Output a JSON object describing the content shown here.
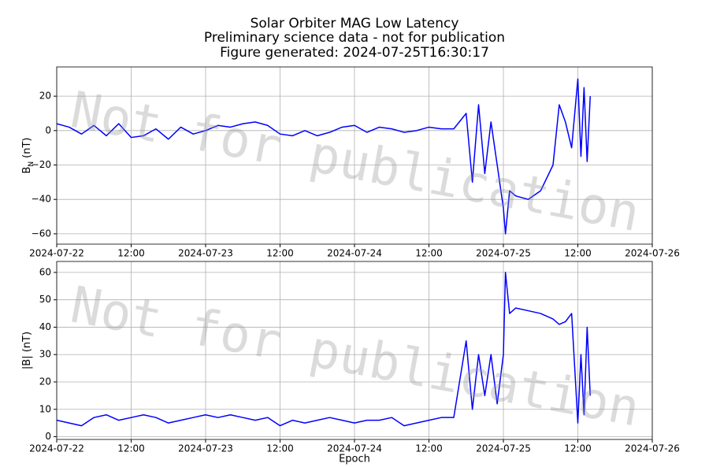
{
  "chart_data": [
    {
      "type": "line",
      "title": "Solar Orbiter MAG Low Latency",
      "subtitle": [
        "Preliminary science data - not for publication",
        "Figure generated: 2024-07-25T16:30:17"
      ],
      "ylabel": [
        "B",
        "N",
        "(nT)"
      ],
      "annotation": "Not for publication",
      "grid": true,
      "x": [
        "2024-07-22 00:00",
        "2024-07-22 02:00",
        "2024-07-22 04:00",
        "2024-07-22 06:00",
        "2024-07-22 08:00",
        "2024-07-22 10:00",
        "2024-07-22 12:00",
        "2024-07-22 14:00",
        "2024-07-22 16:00",
        "2024-07-22 18:00",
        "2024-07-22 20:00",
        "2024-07-22 22:00",
        "2024-07-23 00:00",
        "2024-07-23 02:00",
        "2024-07-23 04:00",
        "2024-07-23 06:00",
        "2024-07-23 08:00",
        "2024-07-23 10:00",
        "2024-07-23 12:00",
        "2024-07-23 14:00",
        "2024-07-23 16:00",
        "2024-07-23 18:00",
        "2024-07-23 20:00",
        "2024-07-23 22:00",
        "2024-07-24 00:00",
        "2024-07-24 02:00",
        "2024-07-24 04:00",
        "2024-07-24 06:00",
        "2024-07-24 08:00",
        "2024-07-24 10:00",
        "2024-07-24 12:00",
        "2024-07-24 14:00",
        "2024-07-24 16:00",
        "2024-07-24 18:00",
        "2024-07-24 19:00",
        "2024-07-24 20:00",
        "2024-07-24 21:00",
        "2024-07-24 22:00",
        "2024-07-24 23:00",
        "2024-07-25 00:00",
        "2024-07-25 00:20",
        "2024-07-25 01:00",
        "2024-07-25 02:00",
        "2024-07-25 04:00",
        "2024-07-25 06:00",
        "2024-07-25 08:00",
        "2024-07-25 09:00",
        "2024-07-25 10:00",
        "2024-07-25 11:00",
        "2024-07-25 12:00",
        "2024-07-25 12:30",
        "2024-07-25 13:00",
        "2024-07-25 13:30",
        "2024-07-25 14:00"
      ],
      "series": [
        {
          "color": "#0000ff",
          "values": [
            4,
            2,
            -2,
            3,
            -3,
            4,
            -4,
            -3,
            1,
            -5,
            2,
            -2,
            0,
            3,
            2,
            4,
            5,
            3,
            -2,
            -3,
            0,
            -3,
            -1,
            2,
            3,
            -1,
            2,
            1,
            -1,
            0,
            2,
            1,
            1,
            10,
            -30,
            15,
            -25,
            5,
            -20,
            -45,
            -60,
            -35,
            -38,
            -40,
            -35,
            -20,
            15,
            5,
            -10,
            30,
            -15,
            25,
            -18,
            20
          ]
        }
      ],
      "xlim": [
        "2024-07-22 00:00",
        "2024-07-26 00:00"
      ],
      "xticks": [
        {
          "value": "2024-07-22 00:00",
          "label": "2024-07-22"
        },
        {
          "value": "2024-07-22 12:00",
          "label": "12:00"
        },
        {
          "value": "2024-07-23 00:00",
          "label": "2024-07-23"
        },
        {
          "value": "2024-07-23 12:00",
          "label": "12:00"
        },
        {
          "value": "2024-07-24 00:00",
          "label": "2024-07-24"
        },
        {
          "value": "2024-07-24 12:00",
          "label": "12:00"
        },
        {
          "value": "2024-07-25 00:00",
          "label": "2024-07-25"
        },
        {
          "value": "2024-07-25 12:00",
          "label": "12:00"
        },
        {
          "value": "2024-07-26 00:00",
          "label": "2024-07-26"
        }
      ],
      "ylim": [
        -66,
        37
      ],
      "yticks": [
        {
          "value": -60,
          "label": "−60"
        },
        {
          "value": -40,
          "label": "−40"
        },
        {
          "value": -20,
          "label": "−20"
        },
        0,
        20
      ]
    },
    {
      "type": "line",
      "ylabel": [
        "|B| (nT)"
      ],
      "xlabel": "Epoch",
      "annotation": "Not for publication",
      "grid": true,
      "x": [
        "2024-07-22 00:00",
        "2024-07-22 02:00",
        "2024-07-22 04:00",
        "2024-07-22 06:00",
        "2024-07-22 08:00",
        "2024-07-22 10:00",
        "2024-07-22 12:00",
        "2024-07-22 14:00",
        "2024-07-22 16:00",
        "2024-07-22 18:00",
        "2024-07-22 20:00",
        "2024-07-22 22:00",
        "2024-07-23 00:00",
        "2024-07-23 02:00",
        "2024-07-23 04:00",
        "2024-07-23 06:00",
        "2024-07-23 08:00",
        "2024-07-23 10:00",
        "2024-07-23 12:00",
        "2024-07-23 14:00",
        "2024-07-23 16:00",
        "2024-07-23 18:00",
        "2024-07-23 20:00",
        "2024-07-23 22:00",
        "2024-07-24 00:00",
        "2024-07-24 02:00",
        "2024-07-24 04:00",
        "2024-07-24 06:00",
        "2024-07-24 08:00",
        "2024-07-24 10:00",
        "2024-07-24 12:00",
        "2024-07-24 14:00",
        "2024-07-24 16:00",
        "2024-07-24 18:00",
        "2024-07-24 19:00",
        "2024-07-24 20:00",
        "2024-07-24 21:00",
        "2024-07-24 22:00",
        "2024-07-24 23:00",
        "2024-07-25 00:00",
        "2024-07-25 00:20",
        "2024-07-25 01:00",
        "2024-07-25 02:00",
        "2024-07-25 04:00",
        "2024-07-25 06:00",
        "2024-07-25 08:00",
        "2024-07-25 09:00",
        "2024-07-25 10:00",
        "2024-07-25 11:00",
        "2024-07-25 12:00",
        "2024-07-25 12:30",
        "2024-07-25 13:00",
        "2024-07-25 13:30",
        "2024-07-25 14:00"
      ],
      "series": [
        {
          "color": "#0000ff",
          "values": [
            6,
            5,
            4,
            7,
            8,
            6,
            7,
            8,
            7,
            5,
            6,
            7,
            8,
            7,
            8,
            7,
            6,
            7,
            4,
            6,
            5,
            6,
            7,
            6,
            5,
            6,
            6,
            7,
            4,
            5,
            6,
            7,
            7,
            35,
            10,
            30,
            15,
            30,
            12,
            30,
            60,
            45,
            47,
            46,
            45,
            43,
            41,
            42,
            45,
            5,
            30,
            8,
            40,
            15
          ]
        }
      ],
      "xlim": [
        "2024-07-22 00:00",
        "2024-07-26 00:00"
      ],
      "xticks": [
        {
          "value": "2024-07-22 00:00",
          "label": "2024-07-22"
        },
        {
          "value": "2024-07-22 12:00",
          "label": "12:00"
        },
        {
          "value": "2024-07-23 00:00",
          "label": "2024-07-23"
        },
        {
          "value": "2024-07-23 12:00",
          "label": "12:00"
        },
        {
          "value": "2024-07-24 00:00",
          "label": "2024-07-24"
        },
        {
          "value": "2024-07-24 12:00",
          "label": "12:00"
        },
        {
          "value": "2024-07-25 00:00",
          "label": "2024-07-25"
        },
        {
          "value": "2024-07-25 12:00",
          "label": "12:00"
        },
        {
          "value": "2024-07-26 00:00",
          "label": "2024-07-26"
        }
      ],
      "ylim": [
        -1,
        64
      ],
      "yticks": [
        0,
        10,
        20,
        30,
        40,
        50,
        60
      ]
    }
  ]
}
